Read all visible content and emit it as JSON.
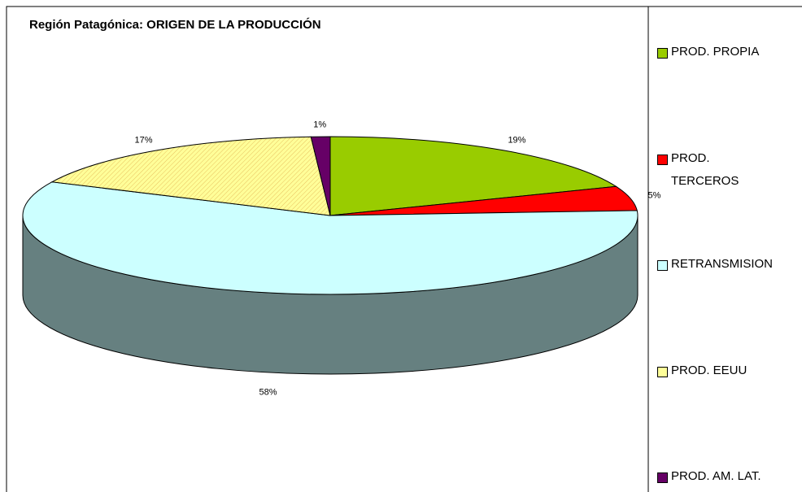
{
  "chart_data": {
    "type": "pie3d",
    "title": "Región Patagónica: ORIGEN DE LA PRODUCCIÓN",
    "categories": [
      "PROD. PROPIA",
      "PROD. TERCEROS",
      "RETRANSMISION",
      "PROD. EEUU",
      "PROD. AM. LAT."
    ],
    "values": [
      19,
      5,
      58,
      17,
      1
    ],
    "value_labels": [
      "19%",
      "5%",
      "58%",
      "17%",
      "1%"
    ],
    "colors": [
      "#99cc00",
      "#ff0000",
      "#ccffff",
      "#ffff99",
      "#660066"
    ],
    "legend": "right"
  }
}
